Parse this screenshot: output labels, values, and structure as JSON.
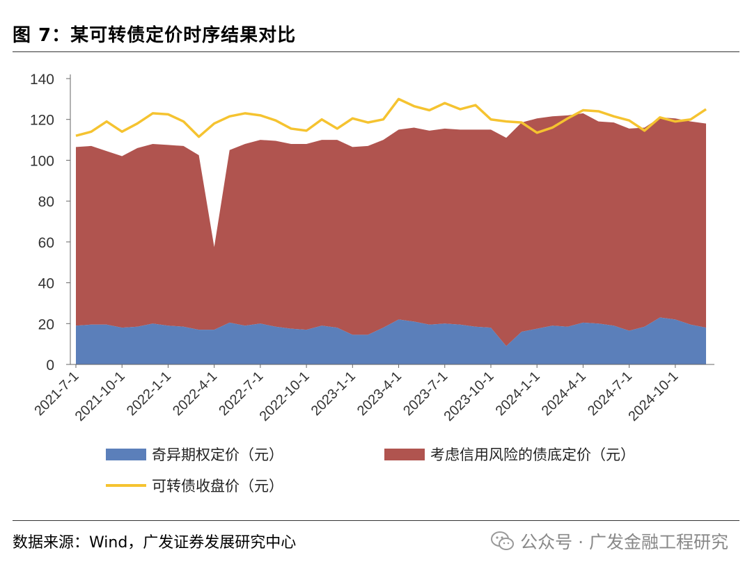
{
  "header": {
    "title": "图 7：某可转债定价时序结果对比"
  },
  "footer": {
    "source": "数据来源：Wind，广发证券发展研究中心",
    "watermark": "公众号 · 广发金融工程研究",
    "watermark_icon": "wechat-icon"
  },
  "colors": {
    "option": "#5b7fba",
    "bond": "#b0544f",
    "price": "#f5c330",
    "axis": "#666666"
  },
  "chart_data": {
    "type": "area",
    "title": "",
    "xlabel": "",
    "ylabel": "",
    "ylim": [
      0,
      140
    ],
    "yticks": [
      0,
      20,
      40,
      60,
      80,
      100,
      120,
      140
    ],
    "x_tick_labels": [
      "2021-7-1",
      "2021-10-1",
      "2022-1-1",
      "2022-4-1",
      "2022-7-1",
      "2022-10-1",
      "2023-1-1",
      "2023-4-1",
      "2023-7-1",
      "2023-10-1",
      "2024-1-1",
      "2024-4-1",
      "2024-7-1",
      "2024-10-1"
    ],
    "x": [
      "2021-7",
      "2021-8",
      "2021-9",
      "2021-10",
      "2021-11",
      "2021-12",
      "2022-1",
      "2022-2",
      "2022-3",
      "2022-4",
      "2022-5",
      "2022-6",
      "2022-7",
      "2022-8",
      "2022-9",
      "2022-10",
      "2022-11",
      "2022-12",
      "2023-1",
      "2023-2",
      "2023-3",
      "2023-4",
      "2023-5",
      "2023-6",
      "2023-7",
      "2023-8",
      "2023-9",
      "2023-10",
      "2023-11",
      "2023-12",
      "2024-1",
      "2024-2",
      "2024-3",
      "2024-4",
      "2024-5",
      "2024-6",
      "2024-7",
      "2024-8",
      "2024-9",
      "2024-10",
      "2024-11",
      "2024-12"
    ],
    "series": [
      {
        "name": "奇异期权定价（元）",
        "kind": "area",
        "values": [
          19,
          19.5,
          19.5,
          18,
          18.5,
          20,
          19,
          18.5,
          17,
          17,
          20.5,
          19,
          20,
          18.5,
          17.5,
          17,
          19,
          18,
          14.5,
          14.5,
          18,
          22,
          21,
          19.5,
          20,
          19.5,
          18.5,
          18,
          9,
          16,
          17.5,
          19,
          18.5,
          20.5,
          20,
          19,
          16.5,
          18.5,
          23,
          22,
          19.5,
          18
        ]
      },
      {
        "name": "考虑信用风险的债底定价（元）",
        "kind": "area",
        "values": [
          87.5,
          87.5,
          85,
          84,
          87.5,
          88,
          88.5,
          88.5,
          85.5,
          40.5,
          84.5,
          89,
          90,
          91,
          90.5,
          91,
          91,
          92,
          92,
          92.5,
          92,
          93,
          95,
          95,
          95.5,
          95.5,
          96.5,
          97,
          102,
          102.5,
          103,
          102.5,
          103.5,
          102.5,
          99,
          99.5,
          99,
          97.5,
          98,
          98.5,
          99.5,
          100
        ]
      },
      {
        "name": "可转债收盘价（元）",
        "kind": "line",
        "values": [
          112,
          114,
          119,
          114,
          118,
          123,
          122.5,
          119,
          111.5,
          118,
          121.5,
          123,
          122,
          119.5,
          115.5,
          114.5,
          120,
          115.5,
          120.5,
          118.5,
          120,
          130,
          126.5,
          124.5,
          128,
          125,
          127,
          120,
          119,
          118.5,
          113.5,
          116,
          120.5,
          124.5,
          124,
          121.5,
          119.5,
          114.5,
          121,
          119,
          120,
          125
        ]
      }
    ],
    "legend_position": "bottom",
    "grid": false
  }
}
